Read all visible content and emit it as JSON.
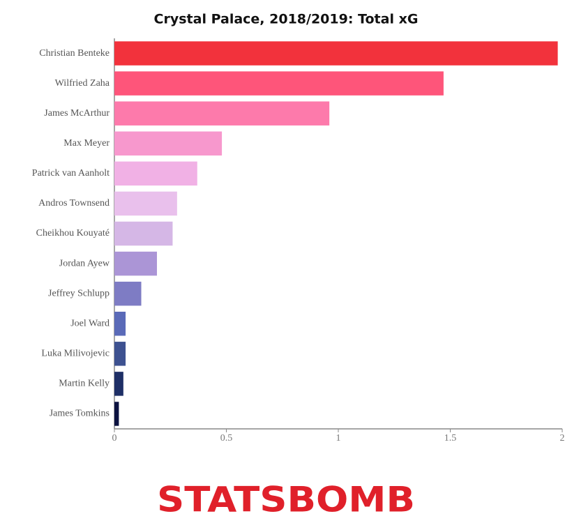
{
  "chart_data": {
    "type": "bar",
    "orientation": "horizontal",
    "title": "Crystal Palace, 2018/2019: Total xG",
    "categories": [
      "Christian Benteke",
      "Wilfried Zaha",
      "James McArthur",
      "Max Meyer",
      "Patrick van Aanholt",
      "Andros Townsend",
      "Cheikhou Kouyaté",
      "Jordan Ayew",
      "Jeffrey Schlupp",
      "Joel Ward",
      "Luka Milivojevic",
      "Martin Kelly",
      "James Tomkins"
    ],
    "values": [
      1.98,
      1.47,
      0.96,
      0.48,
      0.37,
      0.28,
      0.26,
      0.19,
      0.12,
      0.05,
      0.05,
      0.04,
      0.02
    ],
    "colors": [
      "#f2323c",
      "#fe557a",
      "#fd7aab",
      "#f798cd",
      "#f1b1e5",
      "#e9c0ec",
      "#d5b7e6",
      "#ab95d6",
      "#7e7cc4",
      "#5a6ab8",
      "#3d5190",
      "#1e2f66",
      "#0c1240"
    ],
    "xlim": [
      0,
      2
    ],
    "xticks": [
      0,
      0.5,
      1,
      1.5,
      2
    ],
    "grid": false
  },
  "footer": {
    "logo": "STATSBOMB"
  }
}
